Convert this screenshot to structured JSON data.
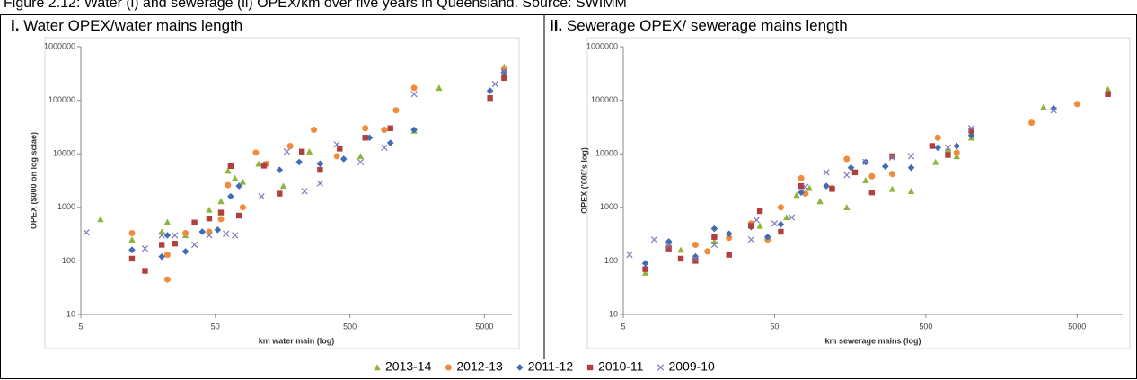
{
  "caption": "Figure 2.12: Water (i) and sewerage (ii) OPEX/km over five years in Queensland. Source: SWIMM",
  "legend": [
    {
      "name": "2013-14",
      "color": "#8db53c",
      "marker": "triangle"
    },
    {
      "name": "2012-13",
      "color": "#f08c3c",
      "marker": "circle"
    },
    {
      "name": "2011-12",
      "color": "#3f6cb4",
      "marker": "diamond"
    },
    {
      "name": "2010-11",
      "color": "#b0403e",
      "marker": "square"
    },
    {
      "name": "2009-10",
      "color": "#8078b8",
      "marker": "x"
    }
  ],
  "chart_data": [
    {
      "type": "scatter",
      "label": "i.",
      "title": "Water OPEX/water mains length",
      "xlabel": "km water main (log)",
      "ylabel": "OPEX ($000 on log sclae)",
      "xscale": "log",
      "yscale": "log",
      "xlim": [
        5,
        8000
      ],
      "ylim": [
        10,
        1000000
      ],
      "xticks": [
        5,
        50,
        500,
        5000
      ],
      "yticks": [
        10,
        100,
        1000,
        10000,
        100000,
        1000000
      ],
      "series": [
        {
          "x": [
            7,
            12,
            20,
            22,
            30,
            45,
            55,
            62,
            70,
            80,
            105,
            160,
            250,
            600,
            1000,
            1500,
            2300,
            7000
          ],
          "values": [
            600,
            250,
            350,
            530,
            300,
            900,
            1300,
            4800,
            3500,
            3000,
            6500,
            2500,
            11000,
            9000,
            30000,
            27000,
            170000,
            420000
          ]
        },
        {
          "x": [
            12,
            22,
            22,
            30,
            45,
            55,
            62,
            80,
            100,
            120,
            180,
            270,
            400,
            650,
            900,
            1100,
            1500,
            7000
          ],
          "values": [
            330,
            45,
            130,
            330,
            350,
            600,
            2600,
            1000,
            10500,
            6500,
            14000,
            28000,
            9000,
            30000,
            28000,
            65000,
            170000,
            380000
          ]
        },
        {
          "x": [
            12,
            20,
            22,
            30,
            40,
            52,
            65,
            75,
            115,
            150,
            210,
            300,
            450,
            700,
            1000,
            1500,
            5500,
            7000
          ],
          "values": [
            160,
            120,
            300,
            150,
            350,
            380,
            1600,
            2500,
            6200,
            5000,
            7000,
            6500,
            8000,
            20000,
            16000,
            28000,
            150000,
            330000
          ]
        },
        {
          "x": [
            12,
            15,
            20,
            25,
            35,
            45,
            55,
            65,
            75,
            115,
            150,
            220,
            300,
            420,
            650,
            1000,
            5500,
            7000
          ],
          "values": [
            110,
            65,
            200,
            210,
            520,
            620,
            800,
            5900,
            700,
            6000,
            1800,
            11000,
            5000,
            12500,
            20000,
            30000,
            110000,
            260000
          ]
        },
        {
          "x": [
            5.5,
            15,
            20,
            25,
            35,
            45,
            60,
            70,
            110,
            170,
            230,
            300,
            400,
            600,
            900,
            1500,
            6000,
            7000
          ],
          "values": [
            340,
            170,
            300,
            300,
            200,
            300,
            320,
            300,
            1600,
            11000,
            2000,
            2800,
            15000,
            7000,
            13000,
            130000,
            200000,
            350000
          ]
        }
      ]
    },
    {
      "type": "scatter",
      "label": "ii.",
      "title": "Sewerage OPEX/ sewerage mains length",
      "xlabel": "km sewerage mains (log)",
      "ylabel": "OPEX ('000's log)",
      "xscale": "log",
      "yscale": "log",
      "xlim": [
        5,
        10000
      ],
      "ylim": [
        10,
        1000000
      ],
      "xticks": [
        5,
        50,
        500,
        5000
      ],
      "yticks": [
        10,
        100,
        1000,
        10000,
        100000,
        1000000
      ],
      "series": [
        {
          "x": [
            7,
            12,
            20,
            40,
            60,
            70,
            85,
            100,
            150,
            200,
            300,
            400,
            580,
            700,
            800,
            1000,
            3000,
            8000
          ],
          "values": [
            60,
            160,
            230,
            450,
            650,
            1700,
            2300,
            1300,
            1000,
            3200,
            2200,
            2000,
            7000,
            12000,
            9000,
            20000,
            75000,
            160000
          ]
        },
        {
          "x": [
            7,
            10,
            15,
            18,
            25,
            35,
            45,
            55,
            75,
            80,
            120,
            150,
            220,
            300,
            600,
            800,
            2500,
            5000
          ],
          "values": [
            70,
            180,
            200,
            150,
            270,
            500,
            250,
            1000,
            3500,
            1800,
            2300,
            8000,
            3800,
            4200,
            20000,
            10500,
            38000,
            85000
          ]
        },
        {
          "x": [
            7,
            10,
            15,
            20,
            25,
            35,
            45,
            55,
            75,
            110,
            160,
            200,
            270,
            400,
            600,
            800,
            1000,
            3500
          ],
          "values": [
            90,
            230,
            120,
            400,
            320,
            430,
            280,
            480,
            1900,
            2500,
            5500,
            7000,
            5800,
            5500,
            13000,
            14000,
            22000,
            70000
          ]
        },
        {
          "x": [
            7,
            10,
            12,
            15,
            20,
            25,
            35,
            40,
            55,
            75,
            120,
            170,
            220,
            300,
            550,
            700,
            1000,
            8000
          ],
          "values": [
            70,
            170,
            110,
            100,
            280,
            130,
            450,
            850,
            350,
            2500,
            2200,
            4500,
            1900,
            9000,
            14000,
            9500,
            27000,
            130000
          ]
        },
        {
          "x": [
            5.5,
            8,
            10,
            15,
            20,
            35,
            38,
            50,
            65,
            80,
            110,
            150,
            200,
            300,
            400,
            700,
            1000,
            3500
          ],
          "values": [
            130,
            250,
            190,
            110,
            200,
            250,
            580,
            500,
            650,
            2400,
            4500,
            4000,
            7000,
            8500,
            9000,
            13000,
            30000,
            65000
          ]
        }
      ]
    }
  ]
}
